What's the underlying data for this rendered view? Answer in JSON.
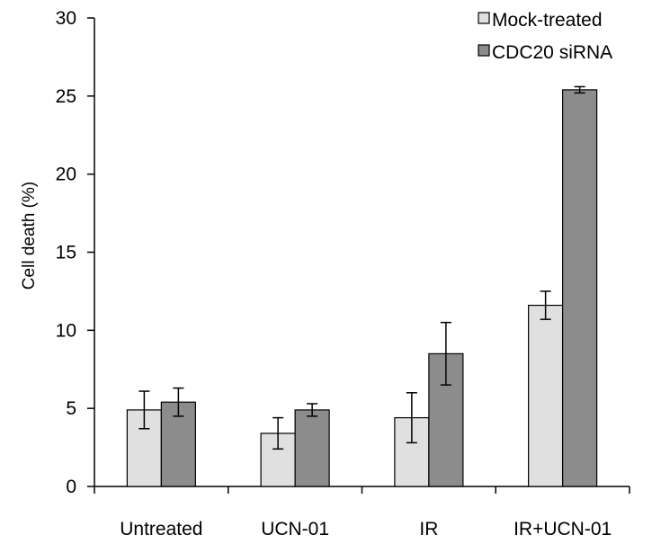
{
  "chart_data": {
    "type": "bar",
    "title": "",
    "xlabel": "",
    "ylabel": "Cell death (%)",
    "ylim": [
      0,
      30
    ],
    "yticks": [
      0,
      5,
      10,
      15,
      20,
      25,
      30
    ],
    "categories": [
      "Untreated",
      "UCN-01",
      "IR",
      "IR+UCN-01"
    ],
    "series": [
      {
        "name": "Mock-treated",
        "color": "#e0e0e0",
        "values": [
          4.9,
          3.4,
          4.4,
          11.6
        ],
        "errors": [
          1.2,
          1.0,
          1.6,
          0.9
        ]
      },
      {
        "name": "CDC20 siRNA",
        "color": "#8c8c8c",
        "values": [
          5.4,
          4.9,
          8.5,
          25.4
        ],
        "errors": [
          0.9,
          0.4,
          2.0,
          0.2
        ]
      }
    ],
    "legend_position": "top-right",
    "grid": false
  }
}
